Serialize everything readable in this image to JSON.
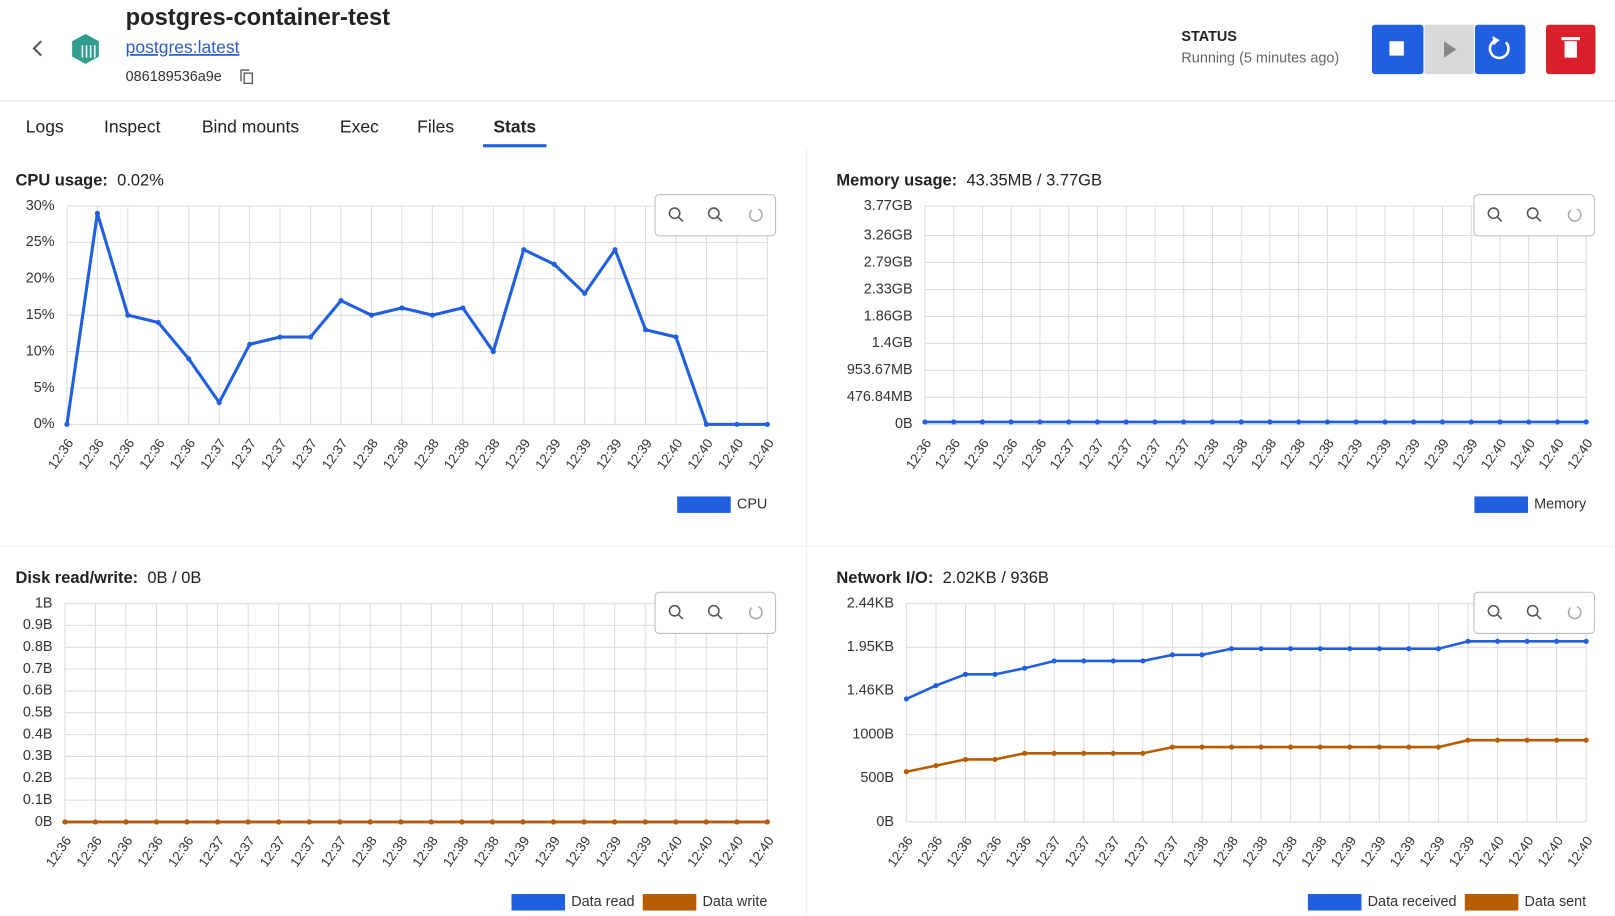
{
  "header": {
    "title": "postgres-container-test",
    "image": "postgres:latest",
    "id": "086189536a9e"
  },
  "status": {
    "label": "STATUS",
    "text": "Running (5 minutes ago)"
  },
  "tabs": [
    "Logs",
    "Inspect",
    "Bind mounts",
    "Exec",
    "Files",
    "Stats"
  ],
  "active_tab": 5,
  "chart_data": [
    {
      "type": "line",
      "title": "CPU usage:",
      "subtitle": "0.02%",
      "categories": [
        "12:36",
        "12:36",
        "12:36",
        "12:36",
        "12:36",
        "12:37",
        "12:37",
        "12:37",
        "12:37",
        "12:37",
        "12:38",
        "12:38",
        "12:38",
        "12:38",
        "12:38",
        "12:39",
        "12:39",
        "12:39",
        "12:39",
        "12:39",
        "12:40",
        "12:40",
        "12:40",
        "12:40"
      ],
      "series": [
        {
          "name": "CPU",
          "color": "#1f5fe0",
          "values": [
            0,
            29,
            15,
            14,
            9,
            3,
            11,
            12,
            12,
            17,
            15,
            16,
            15,
            16,
            10,
            24,
            22,
            18,
            24,
            13,
            12,
            0,
            0,
            0
          ]
        }
      ],
      "ylim": [
        0,
        30
      ],
      "yticks": [
        {
          "value": 0,
          "label": "0%"
        },
        {
          "value": 5,
          "label": "5%"
        },
        {
          "value": 10,
          "label": "10%"
        },
        {
          "value": 15,
          "label": "15%"
        },
        {
          "value": 20,
          "label": "20%"
        },
        {
          "value": 25,
          "label": "25%"
        },
        {
          "value": 30,
          "label": "30%"
        }
      ],
      "grid": true
    },
    {
      "type": "line",
      "title": "Memory usage:",
      "subtitle": "43.35MB / 3.77GB",
      "categories": [
        "12:36",
        "12:36",
        "12:36",
        "12:36",
        "12:36",
        "12:37",
        "12:37",
        "12:37",
        "12:37",
        "12:37",
        "12:38",
        "12:38",
        "12:38",
        "12:38",
        "12:38",
        "12:39",
        "12:39",
        "12:39",
        "12:39",
        "12:39",
        "12:40",
        "12:40",
        "12:40",
        "12:40"
      ],
      "series": [
        {
          "name": "Memory",
          "color": "#1f5fe0",
          "values": [
            43.35,
            43.35,
            43.35,
            43.35,
            43.35,
            43.35,
            43.35,
            43.35,
            43.35,
            43.35,
            43.35,
            43.35,
            43.35,
            43.35,
            43.35,
            43.35,
            43.35,
            43.35,
            43.35,
            43.35,
            43.35,
            43.35,
            43.35,
            43.35
          ]
        }
      ],
      "ylim": [
        0,
        3860
      ],
      "yticks": [
        {
          "value": 0,
          "label": "0B"
        },
        {
          "value": 476.84,
          "label": "476.84MB"
        },
        {
          "value": 953.67,
          "label": "953.67MB"
        },
        {
          "value": 1430.51,
          "label": "1.4GB"
        },
        {
          "value": 1907.35,
          "label": "1.86GB"
        },
        {
          "value": 2384.19,
          "label": "2.33GB"
        },
        {
          "value": 2861.02,
          "label": "2.79GB"
        },
        {
          "value": 3337.86,
          "label": "3.26GB"
        },
        {
          "value": 3860,
          "label": "3.77GB"
        }
      ],
      "grid": true
    },
    {
      "type": "line",
      "title": "Disk read/write:",
      "subtitle": "0B / 0B",
      "categories": [
        "12:36",
        "12:36",
        "12:36",
        "12:36",
        "12:36",
        "12:37",
        "12:37",
        "12:37",
        "12:37",
        "12:37",
        "12:38",
        "12:38",
        "12:38",
        "12:38",
        "12:38",
        "12:39",
        "12:39",
        "12:39",
        "12:39",
        "12:39",
        "12:40",
        "12:40",
        "12:40",
        "12:40"
      ],
      "series": [
        {
          "name": "Data read",
          "color": "#1f5fe0",
          "values": [
            0,
            0,
            0,
            0,
            0,
            0,
            0,
            0,
            0,
            0,
            0,
            0,
            0,
            0,
            0,
            0,
            0,
            0,
            0,
            0,
            0,
            0,
            0,
            0
          ]
        },
        {
          "name": "Data write",
          "color": "#b85c00",
          "values": [
            0,
            0,
            0,
            0,
            0,
            0,
            0,
            0,
            0,
            0,
            0,
            0,
            0,
            0,
            0,
            0,
            0,
            0,
            0,
            0,
            0,
            0,
            0,
            0
          ]
        }
      ],
      "ylim": [
        0,
        1
      ],
      "yticks": [
        {
          "value": 0,
          "label": "0B"
        },
        {
          "value": 0.1,
          "label": "0.1B"
        },
        {
          "value": 0.2,
          "label": "0.2B"
        },
        {
          "value": 0.3,
          "label": "0.3B"
        },
        {
          "value": 0.4,
          "label": "0.4B"
        },
        {
          "value": 0.5,
          "label": "0.5B"
        },
        {
          "value": 0.6,
          "label": "0.6B"
        },
        {
          "value": 0.7,
          "label": "0.7B"
        },
        {
          "value": 0.8,
          "label": "0.8B"
        },
        {
          "value": 0.9,
          "label": "0.9B"
        },
        {
          "value": 1,
          "label": "1B"
        }
      ],
      "grid": true
    },
    {
      "type": "line",
      "title": "Network I/O:",
      "subtitle": "2.02KB / 936B",
      "categories": [
        "12:36",
        "12:36",
        "12:36",
        "12:36",
        "12:36",
        "12:37",
        "12:37",
        "12:37",
        "12:37",
        "12:37",
        "12:38",
        "12:38",
        "12:38",
        "12:38",
        "12:38",
        "12:39",
        "12:39",
        "12:39",
        "12:39",
        "12:39",
        "12:40",
        "12:40",
        "12:40",
        "12:40"
      ],
      "series": [
        {
          "name": "Data received",
          "color": "#1f5fe0",
          "values": [
            1408,
            1561,
            1690,
            1690,
            1760,
            1843,
            1843,
            1843,
            1843,
            1913,
            1913,
            1983,
            1983,
            1983,
            1983,
            1983,
            1983,
            1983,
            1983,
            2068,
            2068,
            2068,
            2068,
            2068
          ]
        },
        {
          "name": "Data sent",
          "color": "#b85c00",
          "values": [
            575,
            645,
            716,
            716,
            786,
            786,
            786,
            786,
            786,
            857,
            857,
            857,
            857,
            857,
            857,
            857,
            857,
            857,
            857,
            936,
            936,
            936,
            936,
            936
          ]
        }
      ],
      "ylim": [
        0,
        2500
      ],
      "yticks": [
        {
          "value": 0,
          "label": "0B"
        },
        {
          "value": 500,
          "label": "500B"
        },
        {
          "value": 1000,
          "label": "1000B"
        },
        {
          "value": 1500,
          "label": "1.46KB"
        },
        {
          "value": 2000,
          "label": "1.95KB"
        },
        {
          "value": 2500,
          "label": "2.44KB"
        }
      ],
      "grid": true
    }
  ]
}
